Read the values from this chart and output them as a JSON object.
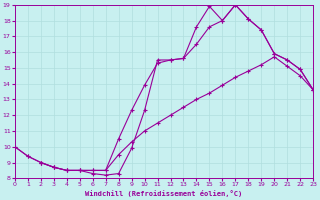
{
  "xlabel": "Windchill (Refroidissement éolien,°C)",
  "bg_color": "#c8f0f0",
  "line_color": "#990099",
  "grid_color": "#b0dede",
  "x_min": 0,
  "x_max": 23,
  "y_min": 8,
  "y_max": 19,
  "line1_x": [
    0,
    1,
    2,
    3,
    4,
    5,
    6,
    7,
    8,
    9,
    10,
    11,
    12,
    13,
    14,
    15,
    16,
    17,
    18,
    19,
    20,
    21,
    22,
    23
  ],
  "line1_y": [
    10.0,
    9.4,
    9.0,
    8.7,
    8.5,
    8.5,
    8.3,
    8.2,
    8.3,
    9.9,
    12.3,
    15.5,
    15.5,
    15.6,
    17.6,
    18.9,
    18.0,
    19.0,
    18.1,
    17.4,
    15.9,
    15.5,
    14.9,
    13.6
  ],
  "line2_x": [
    2,
    3,
    4,
    5,
    6,
    7,
    8,
    9,
    10,
    11,
    12,
    13,
    14,
    15,
    16,
    17,
    18,
    19,
    20,
    21,
    22,
    23
  ],
  "line2_y": [
    9.0,
    8.7,
    8.5,
    8.5,
    8.5,
    8.5,
    10.5,
    12.3,
    13.9,
    15.3,
    15.5,
    15.6,
    16.5,
    17.6,
    18.0,
    19.0,
    18.1,
    17.4,
    15.9,
    15.5,
    14.9,
    13.6
  ],
  "line3_x": [
    0,
    1,
    2,
    3,
    4,
    5,
    6,
    7,
    8,
    9,
    10,
    11,
    12,
    13,
    14,
    15,
    16,
    17,
    18,
    19,
    20,
    21,
    22,
    23
  ],
  "line3_y": [
    10.0,
    9.4,
    9.0,
    8.7,
    8.5,
    8.5,
    8.5,
    8.5,
    9.5,
    10.3,
    11.0,
    11.5,
    12.0,
    12.5,
    13.0,
    13.4,
    13.9,
    14.4,
    14.8,
    15.2,
    15.7,
    15.1,
    14.5,
    13.6
  ]
}
